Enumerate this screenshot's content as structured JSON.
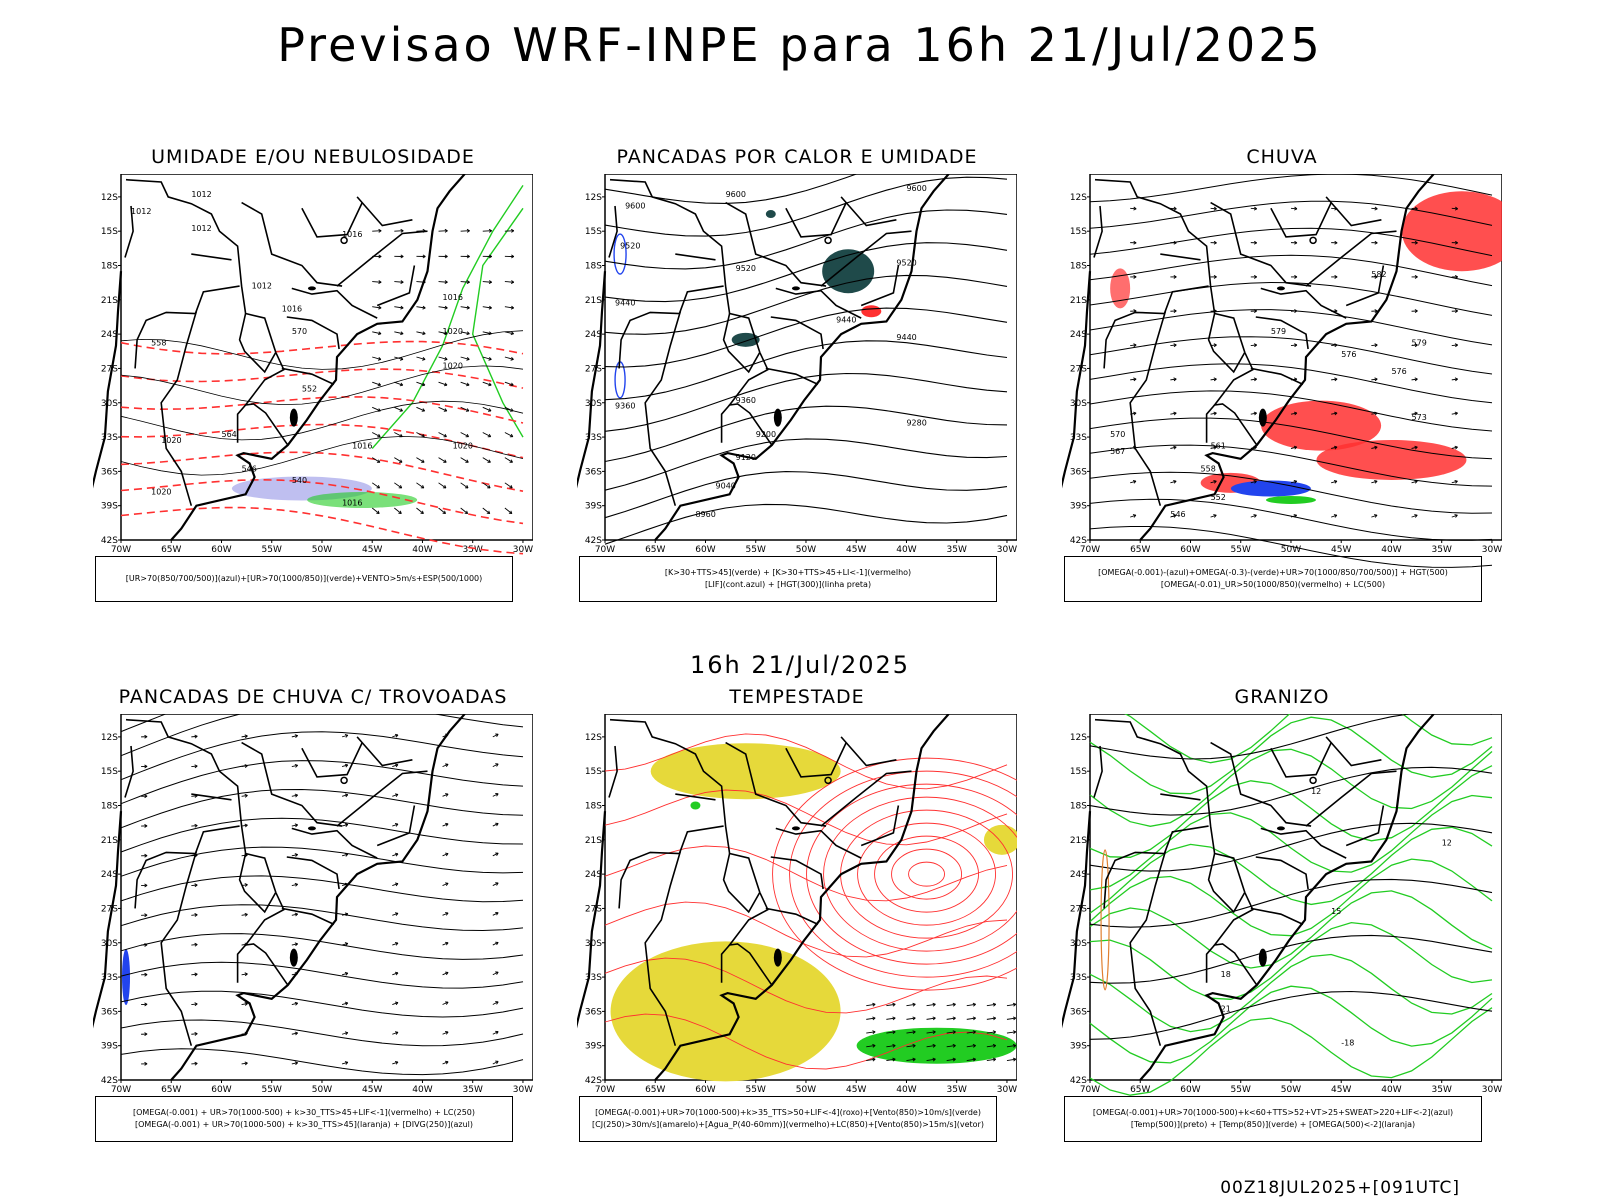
{
  "title": "Previsao WRF-INPE  para 16h 21/Jul/2025",
  "mid_time": "16h 21/Jul/2025",
  "footer": "00Z18JUL2025+[091UTC]",
  "axes": {
    "lat_labels": [
      "12S",
      "15S",
      "18S",
      "21S",
      "24S",
      "27S",
      "30S",
      "33S",
      "36S",
      "39S",
      "42S"
    ],
    "lon_labels": [
      "70W",
      "65W",
      "60W",
      "55W",
      "50W",
      "45W",
      "40W",
      "35W",
      "30W"
    ]
  },
  "panels": [
    {
      "title": "UMIDADE E/OU NEBULOSIDADE",
      "legend": [
        "[UR>70(850/700/500)](azul)+[UR>70(1000/850)](verde)+VENTO>5m/s+ESP(500/1000)"
      ],
      "labels": [
        "1012",
        "1012",
        "1012",
        "1016",
        "1012",
        "1016",
        "1020",
        "1020",
        "1016",
        "1020",
        "1016",
        "1020",
        "1016",
        "1020",
        "570",
        "564",
        "558",
        "552",
        "546",
        "540"
      ]
    },
    {
      "title": "PANCADAS POR CALOR E UMIDADE",
      "legend": [
        "[K>30+TTS>45](verde) + [K>30+TTS>45+LI<-1](vermelho)",
        "[LIF](cont.azul) + [HGT(300)](linha preta)"
      ],
      "labels": [
        "9600",
        "9600",
        "9600",
        "9520",
        "9520",
        "9520",
        "9440",
        "9440",
        "9440",
        "9360",
        "9360",
        "9280",
        "9200",
        "9120",
        "9040",
        "8960"
      ]
    },
    {
      "title": "CHUVA",
      "legend": [
        "[OMEGA(-0.001)-(azul)+OMEGA(-0.3)-(verde)+UR>70(1000/850/700/500)] + HGT(500)",
        "[OMEGA(-0.01)_UR>50(1000/850)(vermelho) + LC(500)"
      ],
      "labels": [
        "582",
        "579",
        "576",
        "579",
        "576",
        "573",
        "570",
        "567",
        "561",
        "558",
        "552",
        "546"
      ]
    },
    {
      "title": "PANCADAS DE CHUVA C/ TROVOADAS",
      "legend": [
        "[OMEGA(-0.001) + UR>70(1000-500) + k>30_TTS>45+LIF<-1](vermelho) + LC(250)",
        "[OMEGA(-0.001) + UR>70(1000-500) + k>30_TTS>45](laranja) + [DIVG(250)](azul)"
      ],
      "labels": []
    },
    {
      "title": "TEMPESTADE",
      "legend": [
        "[OMEGA(-0.001)+UR>70(1000-500)+k>35_TTS>50+LIF<-4](roxo)+[Vento(850)>10m/s](verde)",
        "[CJ(250)>30m/s](amarelo)+[Agua_P(40-60mm)](vermelho)+LC(850)+[Vento(850)>15m/s](vetor)"
      ],
      "labels": []
    },
    {
      "title": "GRANIZO",
      "legend": [
        "[OMEGA(-0.001)+UR>70(1000-500)+k<60+TTS>52+VT>25+SWEAT>220+LIF<-2](azul)",
        "[Temp(500)](preto) + [Temp(850)](verde) + [OMEGA(500)<-2](laranja)"
      ],
      "labels": [
        "12",
        "12",
        "15",
        "18",
        "21",
        "-18"
      ]
    }
  ],
  "colors": {
    "red": "#ff3030",
    "green": "#22cc22",
    "blue": "#2244ee",
    "teal": "#1f4a4a",
    "yellow": "#e6d93a",
    "lavender": "#b8b8ee"
  }
}
